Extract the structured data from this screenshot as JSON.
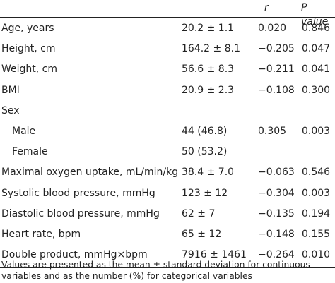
{
  "header": {
    "r_label": "r",
    "p_label": "P value"
  },
  "rows": [
    {
      "variable": "Age, years",
      "value": "20.2 ± 1.1",
      "r": "0.020",
      "p": "0.846"
    },
    {
      "variable": "Height, cm",
      "value": "164.2 ± 8.1",
      "r": "−0.205",
      "p": "0.047"
    },
    {
      "variable": "Weight, cm",
      "value": "56.6 ± 8.3",
      "r": "−0.211",
      "p": "0.041"
    },
    {
      "variable": "BMI",
      "value": "20.9 ± 2.3",
      "r": "−0.108",
      "p": "0.300"
    },
    {
      "variable": "Sex",
      "value": "",
      "r": "",
      "p": ""
    },
    {
      "variable": "Male",
      "value": "44 (46.8)",
      "r": "0.305",
      "p": "0.003"
    },
    {
      "variable": "Female",
      "value": "50 (53.2)",
      "r": "",
      "p": ""
    },
    {
      "variable": "Maximal oxygen uptake, mL/min/kg",
      "value": "38.4 ± 7.0",
      "r": "−0.063",
      "p": "0.546"
    },
    {
      "variable": "Systolic blood pressure, mmHg",
      "value": "123 ± 12",
      "r": "−0.304",
      "p": "0.003"
    },
    {
      "variable": "Diastolic blood pressure, mmHg",
      "value": "62 ± 7",
      "r": "−0.135",
      "p": "0.194"
    },
    {
      "variable": "Heart rate, bpm",
      "value": "65 ± 12",
      "r": "−0.148",
      "p": "0.155"
    },
    {
      "variable": "Double product, mmHg×bpm",
      "value": "7916 ± 1461",
      "r": "−0.264",
      "p": "0.010"
    }
  ],
  "footnote": "Values are presented as the mean ± standard deviation for continuous variables and as the number (%) for categorical variables"
}
